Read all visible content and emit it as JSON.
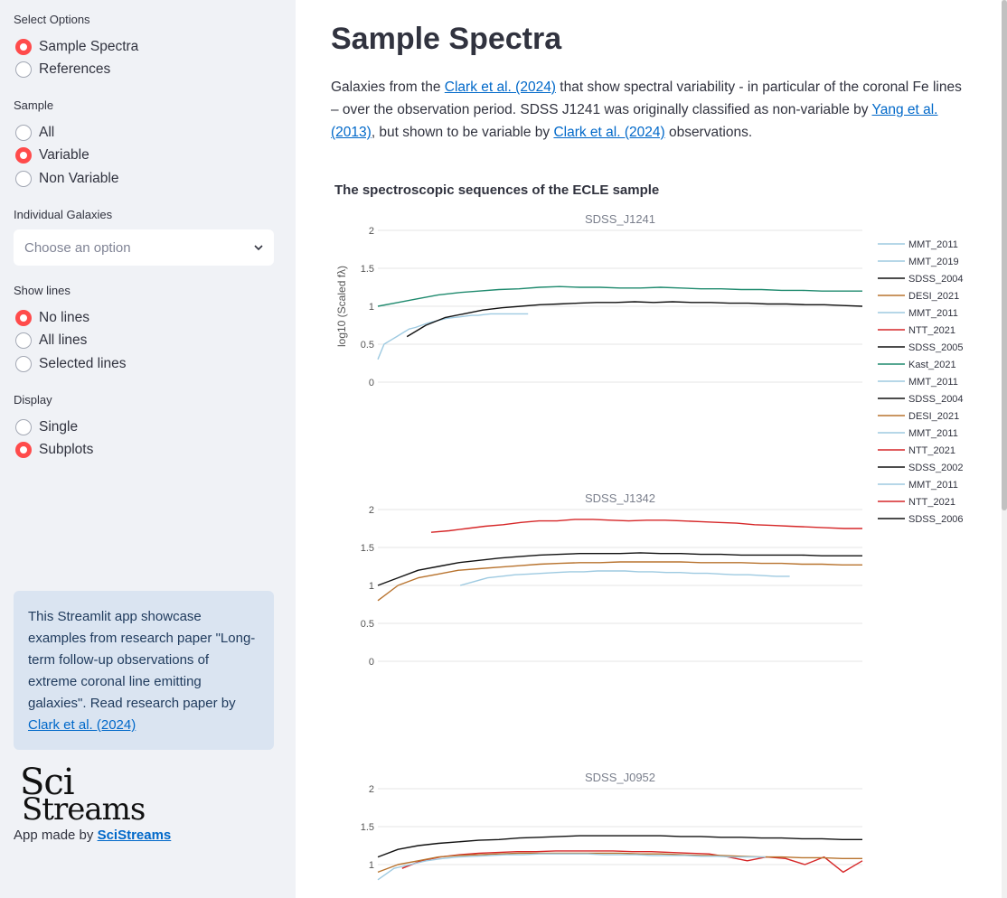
{
  "sidebar": {
    "select_options": {
      "label": "Select Options",
      "options": [
        "Sample Spectra",
        "References"
      ],
      "selected": 0
    },
    "sample": {
      "label": "Sample",
      "options": [
        "All",
        "Variable",
        "Non Variable"
      ],
      "selected": 1
    },
    "individual": {
      "label": "Individual Galaxies",
      "placeholder": "Choose an option"
    },
    "show_lines": {
      "label": "Show lines",
      "options": [
        "No lines",
        "All lines",
        "Selected lines"
      ],
      "selected": 0
    },
    "display": {
      "label": "Display",
      "options": [
        "Single",
        "Subplots"
      ],
      "selected": 1
    },
    "info": {
      "text": "This Streamlit app showcase examples from research paper \"Long-term follow-up observations of extreme coronal line emitting galaxies\". Read research paper by ",
      "link": "Clark et al. (2024)"
    },
    "logo": {
      "line1": "Sci",
      "line2": "Streams"
    },
    "made_by": {
      "prefix": "App made by ",
      "link": "SciStreams"
    }
  },
  "main": {
    "title": "Sample Spectra",
    "intro": {
      "t1": "Galaxies from the ",
      "l1": "Clark et al. (2024)",
      "t2": " that show spectral variability - in particular of the coronal Fe lines – over the observation period. SDSS J1241 was originally classified as non-variable by ",
      "l2": "Yang et al. (2013)",
      "t3": ", but shown to be variable by ",
      "l3": "Clark et al. (2024)",
      "t4": " observations."
    }
  },
  "chart_data": {
    "type": "line",
    "title": "The spectroscopic sequences of the ECLE sample",
    "ylabel": "log10 (Scaled fλ)",
    "legend": [
      "MMT_2011",
      "MMT_2019",
      "SDSS_2004",
      "DESI_2021",
      "MMT_2011",
      "NTT_2021",
      "SDSS_2005",
      "Kast_2021",
      "MMT_2011",
      "SDSS_2004",
      "DESI_2021",
      "MMT_2011",
      "NTT_2021",
      "SDSS_2002",
      "MMT_2011",
      "NTT_2021",
      "SDSS_2006"
    ],
    "legend_colors": [
      "#9ecae1",
      "#9ecae1",
      "#111111",
      "#b8732e",
      "#9ecae1",
      "#d62728",
      "#111111",
      "#1f8a6e",
      "#9ecae1",
      "#111111",
      "#b8732e",
      "#9ecae1",
      "#d62728",
      "#111111",
      "#9ecae1",
      "#d62728",
      "#111111"
    ],
    "legend_position": "right",
    "colors": {
      "mmt": "#9ecae1",
      "sdss": "#111111",
      "desi": "#b8732e",
      "ntt": "#d62728",
      "kast": "#1f8a6e"
    },
    "subplots": [
      {
        "title": "SDSS_J1241",
        "yticks": [
          "2",
          "1.5",
          "1",
          "0.5",
          "0"
        ],
        "ylim": [
          0,
          2
        ],
        "series": [
          {
            "name": "Kast_2021",
            "color": "#1f8a6e",
            "xrange": [
              0,
              1
            ],
            "values": [
              1.0,
              1.05,
              1.1,
              1.15,
              1.18,
              1.2,
              1.22,
              1.23,
              1.25,
              1.26,
              1.25,
              1.25,
              1.24,
              1.24,
              1.25,
              1.24,
              1.23,
              1.23,
              1.22,
              1.22,
              1.21,
              1.21,
              1.2,
              1.2,
              1.2
            ]
          },
          {
            "name": "MMT_2011",
            "color": "#9ecae1",
            "xrange": [
              0,
              0.31
            ],
            "values": [
              0.3,
              0.5,
              0.55,
              0.6,
              0.65,
              0.7,
              0.72,
              0.75,
              0.78,
              0.8,
              0.82,
              0.84,
              0.85,
              0.86,
              0.87,
              0.88,
              0.88,
              0.89,
              0.9,
              0.9,
              0.9,
              0.9,
              0.9,
              0.9,
              0.9
            ]
          },
          {
            "name": "SDSS_2005",
            "color": "#111111",
            "xrange": [
              0.06,
              1
            ],
            "values": [
              0.6,
              0.75,
              0.85,
              0.9,
              0.95,
              0.98,
              1.0,
              1.02,
              1.03,
              1.04,
              1.05,
              1.05,
              1.06,
              1.05,
              1.06,
              1.05,
              1.05,
              1.04,
              1.04,
              1.03,
              1.03,
              1.02,
              1.02,
              1.01,
              1.0
            ]
          }
        ]
      },
      {
        "title": "SDSS_J1342",
        "yticks": [
          "2",
          "1.5",
          "1",
          "0.5",
          "0"
        ],
        "ylim": [
          0,
          2
        ],
        "series": [
          {
            "name": "NTT_2021",
            "color": "#d62728",
            "xrange": [
              0.11,
              1
            ],
            "values": [
              1.7,
              1.72,
              1.75,
              1.78,
              1.8,
              1.83,
              1.85,
              1.85,
              1.87,
              1.87,
              1.86,
              1.85,
              1.86,
              1.86,
              1.85,
              1.84,
              1.83,
              1.82,
              1.8,
              1.79,
              1.78,
              1.77,
              1.76,
              1.75,
              1.75
            ]
          },
          {
            "name": "SDSS_2006",
            "color": "#111111",
            "xrange": [
              0,
              1
            ],
            "values": [
              1.0,
              1.1,
              1.2,
              1.25,
              1.3,
              1.33,
              1.36,
              1.38,
              1.4,
              1.41,
              1.42,
              1.42,
              1.42,
              1.43,
              1.42,
              1.42,
              1.41,
              1.41,
              1.4,
              1.4,
              1.4,
              1.4,
              1.39,
              1.39,
              1.39
            ]
          },
          {
            "name": "DESI_2021",
            "color": "#b8732e",
            "xrange": [
              0,
              1
            ],
            "values": [
              0.8,
              1.0,
              1.1,
              1.15,
              1.2,
              1.22,
              1.24,
              1.26,
              1.28,
              1.29,
              1.3,
              1.3,
              1.31,
              1.31,
              1.31,
              1.31,
              1.3,
              1.3,
              1.3,
              1.29,
              1.29,
              1.28,
              1.28,
              1.27,
              1.27
            ]
          },
          {
            "name": "MMT_2011",
            "color": "#9ecae1",
            "xrange": [
              0.17,
              0.85
            ],
            "values": [
              1.0,
              1.05,
              1.1,
              1.12,
              1.14,
              1.15,
              1.16,
              1.17,
              1.18,
              1.18,
              1.19,
              1.19,
              1.19,
              1.18,
              1.18,
              1.17,
              1.17,
              1.16,
              1.16,
              1.15,
              1.14,
              1.14,
              1.13,
              1.12,
              1.12
            ]
          }
        ]
      },
      {
        "title": "SDSS_J0952",
        "yticks": [
          "2",
          "1.5",
          "1"
        ],
        "ylim": [
          0,
          2
        ],
        "series": [
          {
            "name": "SDSS_2004",
            "color": "#111111",
            "xrange": [
              0,
              1
            ],
            "values": [
              1.1,
              1.2,
              1.25,
              1.28,
              1.3,
              1.32,
              1.33,
              1.35,
              1.36,
              1.37,
              1.38,
              1.38,
              1.38,
              1.38,
              1.38,
              1.37,
              1.37,
              1.36,
              1.36,
              1.35,
              1.35,
              1.34,
              1.34,
              1.33,
              1.33
            ]
          },
          {
            "name": "NTT_2021",
            "color": "#d62728",
            "xrange": [
              0.05,
              1
            ],
            "values": [
              0.95,
              1.05,
              1.1,
              1.13,
              1.15,
              1.16,
              1.17,
              1.17,
              1.18,
              1.18,
              1.18,
              1.18,
              1.17,
              1.17,
              1.16,
              1.15,
              1.14,
              1.1,
              1.05,
              1.1,
              1.08,
              1.0,
              1.1,
              0.9,
              1.05
            ]
          },
          {
            "name": "DESI_2021",
            "color": "#b8732e",
            "xrange": [
              0,
              1
            ],
            "values": [
              0.9,
              1.0,
              1.05,
              1.1,
              1.12,
              1.13,
              1.14,
              1.15,
              1.15,
              1.15,
              1.15,
              1.15,
              1.15,
              1.14,
              1.14,
              1.13,
              1.12,
              1.12,
              1.11,
              1.1,
              1.1,
              1.09,
              1.09,
              1.08,
              1.08
            ]
          },
          {
            "name": "MMT_2011",
            "color": "#9ecae1",
            "xrange": [
              0,
              0.8
            ],
            "values": [
              0.8,
              0.95,
              1.0,
              1.05,
              1.08,
              1.1,
              1.11,
              1.12,
              1.13,
              1.13,
              1.14,
              1.14,
              1.14,
              1.14,
              1.13,
              1.13,
              1.13,
              1.12,
              1.12,
              1.12,
              1.11,
              1.11,
              1.1,
              1.1,
              1.1
            ]
          }
        ]
      }
    ]
  }
}
